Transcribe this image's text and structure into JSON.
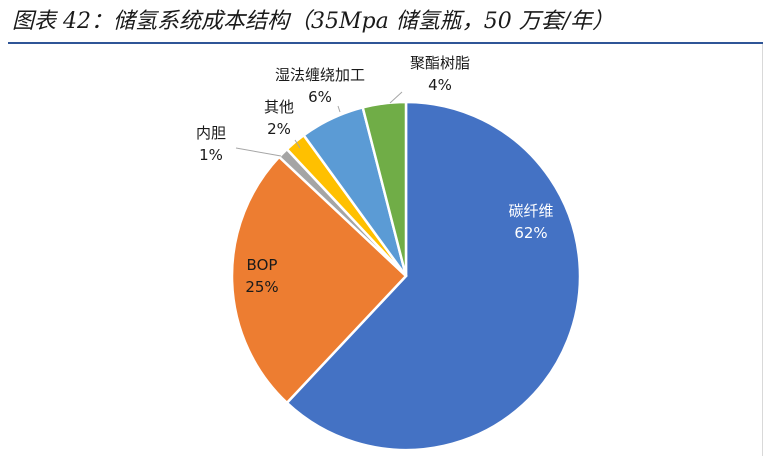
{
  "title": "图表 42：储氢系统成本结构（35Mpa 储氢瓶，50 万套/年）",
  "chart_data": {
    "type": "pie",
    "slices": [
      {
        "label": "碳纤维",
        "value": 62,
        "value_label": "62%",
        "color": "#4472c4"
      },
      {
        "label": "BOP",
        "value": 25,
        "value_label": "25%",
        "color": "#ed7d31"
      },
      {
        "label": "内胆",
        "value": 1,
        "value_label": "1%",
        "color": "#a5a5a5"
      },
      {
        "label": "其他",
        "value": 2,
        "value_label": "2%",
        "color": "#ffc000"
      },
      {
        "label": "湿法缠绕加工",
        "value": 6,
        "value_label": "6%",
        "color": "#5b9bd5"
      },
      {
        "label": "聚酯树脂",
        "value": 4,
        "value_label": "4%",
        "color": "#70ad47"
      }
    ]
  }
}
